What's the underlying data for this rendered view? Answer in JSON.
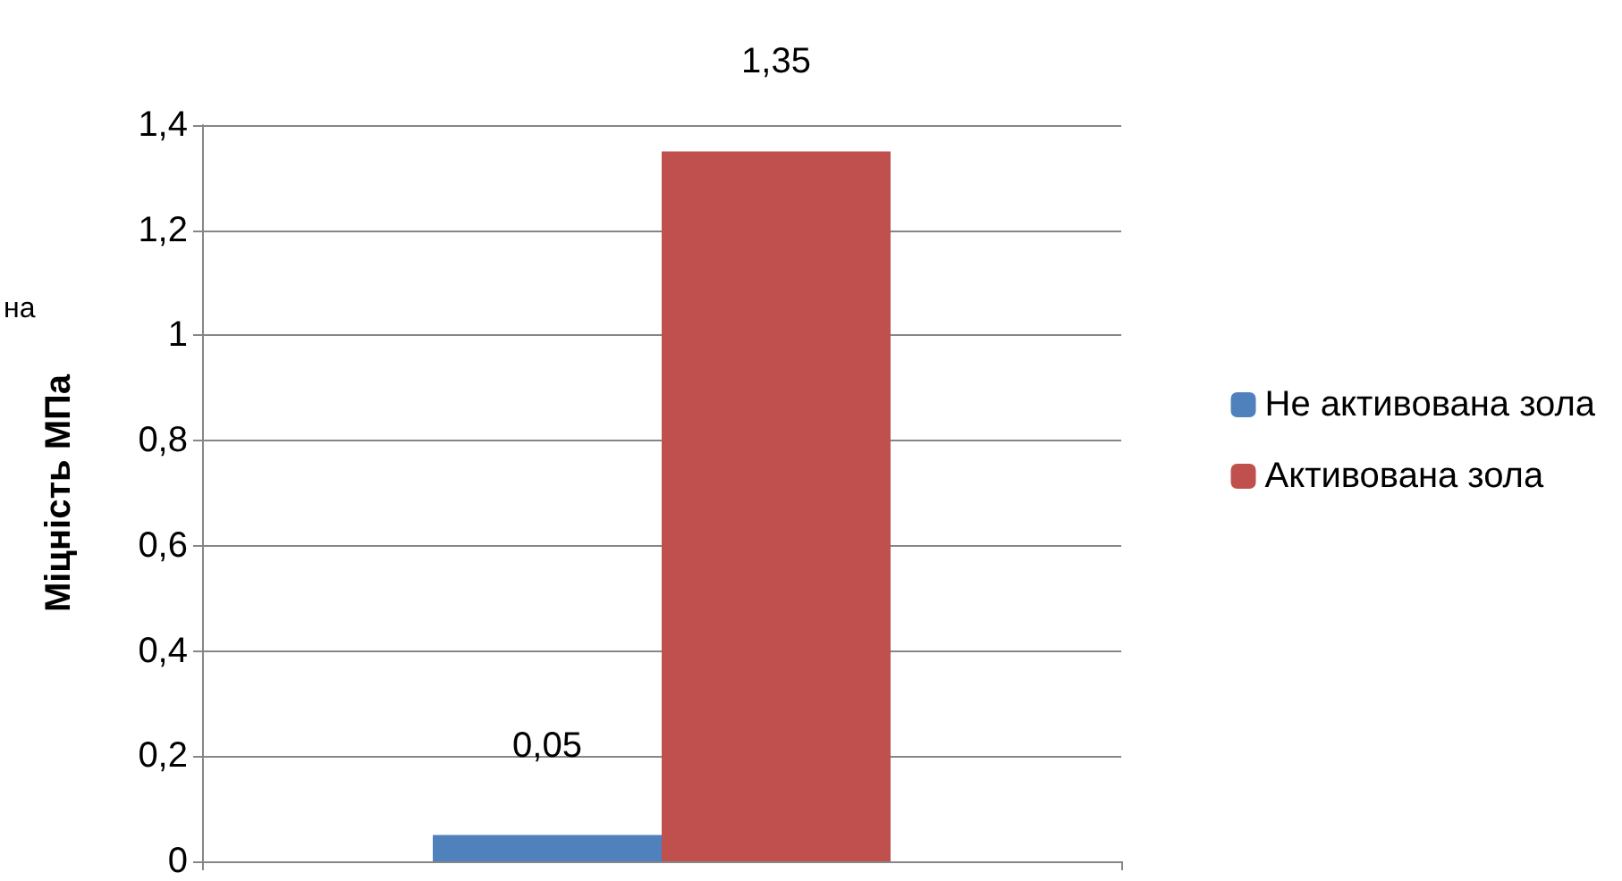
{
  "chart_data": {
    "type": "bar",
    "categories": [
      null
    ],
    "ylabel": "Міцність МПа",
    "annotations": [
      "на"
    ],
    "series": [
      {
        "name": "Не активована зола",
        "color": "#4f81bd",
        "values": [
          0.05
        ],
        "value_labels": [
          "0,05"
        ]
      },
      {
        "name": "Активована зола",
        "color": "#c0504d",
        "values": [
          1.35
        ],
        "value_labels": [
          "1,35"
        ]
      }
    ],
    "ylim": [
      0,
      1.4
    ],
    "yticks": [
      0,
      {
        "value": 0.2,
        "label": "0,2"
      },
      {
        "value": 0.4,
        "label": "0,4"
      },
      {
        "value": 0.6,
        "label": "0,6"
      },
      {
        "value": 0.8,
        "label": "0,8"
      },
      1,
      {
        "value": 1.2,
        "label": "1,2"
      },
      {
        "value": 1.4,
        "label": "1,4"
      }
    ],
    "grid": "y",
    "legend": "right"
  }
}
